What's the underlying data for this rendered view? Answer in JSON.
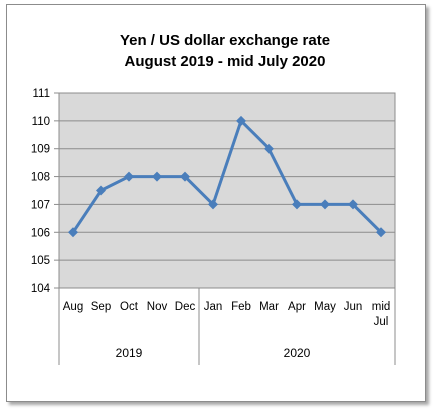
{
  "chart_data": {
    "type": "line",
    "title_line1": "Yen / US dollar exchange rate",
    "title_line2": "August 2019  - mid July 2020",
    "categories": [
      "Aug",
      "Sep",
      "Oct",
      "Nov",
      "Dec",
      "Jan",
      "Feb",
      "Mar",
      "Apr",
      "May",
      "Jun",
      "mid Jul"
    ],
    "category_lines": [
      [
        "Aug"
      ],
      [
        "Sep"
      ],
      [
        "Oct"
      ],
      [
        "Nov"
      ],
      [
        "Dec"
      ],
      [
        "Jan"
      ],
      [
        "Feb"
      ],
      [
        "Mar"
      ],
      [
        "Apr"
      ],
      [
        "May"
      ],
      [
        "Jun"
      ],
      [
        "mid",
        "Jul"
      ]
    ],
    "groups": [
      {
        "label": "2019",
        "start": 0,
        "end": 4
      },
      {
        "label": "2020",
        "start": 5,
        "end": 11
      }
    ],
    "values": [
      106,
      107.5,
      108,
      108,
      108,
      107,
      110,
      109,
      107,
      107,
      107,
      106
    ],
    "ylim": [
      104,
      111
    ],
    "yticks": [
      104,
      105,
      106,
      107,
      108,
      109,
      110,
      111
    ],
    "grid": true,
    "legend": "none",
    "colors": {
      "line": "#4a7ebb",
      "plot_bg": "#d9d9d9",
      "grid": "#8c8c8c"
    }
  }
}
